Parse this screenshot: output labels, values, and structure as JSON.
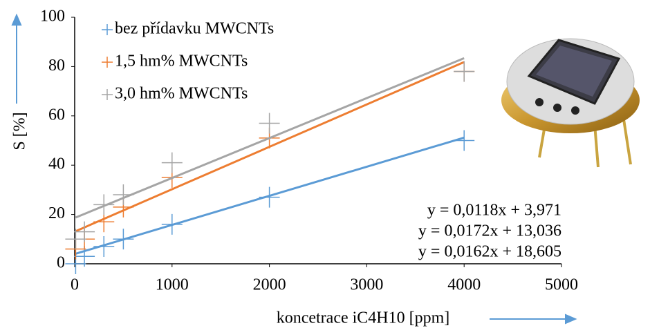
{
  "chart_data": {
    "type": "scatter",
    "xlabel": "koncetrace iC4H10 [ppm]",
    "ylabel": "S [%]",
    "xlim": [
      0,
      5000
    ],
    "xticks": [
      0,
      1000,
      2000,
      3000,
      4000,
      5000
    ],
    "ylim": [
      0,
      100
    ],
    "yticks": [
      0,
      20,
      40,
      60,
      80,
      100
    ],
    "x": [
      10,
      100,
      300,
      500,
      1000,
      2000,
      4000
    ],
    "series": [
      {
        "name": "bez přídavku MWCNTs",
        "color": "#5b9bd5",
        "values": [
          0,
          3,
          7,
          10,
          16,
          27,
          50
        ],
        "trendline": {
          "label": "y = 0,0118x + 3,971",
          "slope": 0.0118,
          "intercept": 3.971
        }
      },
      {
        "name": "1,5 hm% MWCNTs",
        "color": "#ed7d31",
        "values": [
          6,
          10,
          17,
          23,
          35,
          51,
          78
        ],
        "trendline": {
          "label": "y = 0,0172x + 13,036",
          "slope": 0.0172,
          "intercept": 13.036
        }
      },
      {
        "name": "3,0 hm% MWCNTs",
        "color": "#a5a5a5",
        "values": [
          10,
          13,
          24,
          28,
          41,
          57,
          78
        ],
        "trendline": {
          "label": "y = 0,0162x + 18,605",
          "slope": 0.0162,
          "intercept": 18.605
        }
      }
    ]
  }
}
